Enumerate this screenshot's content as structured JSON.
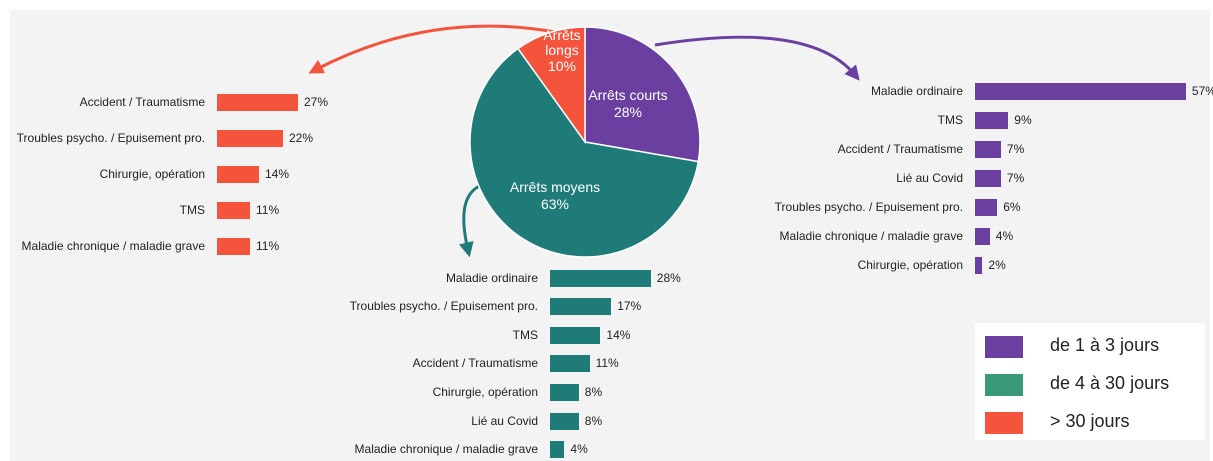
{
  "chart_data": [
    {
      "type": "pie",
      "categories": [
        "Arrêts courts",
        "Arrêts moyens",
        "Arrêts longs"
      ],
      "values": [
        28,
        63,
        10
      ],
      "value_labels": [
        "28%",
        "63%",
        "10%"
      ],
      "colors": [
        "#6b3fa0",
        "#1e7b78",
        "#f4533c"
      ]
    },
    {
      "type": "bar",
      "categories": [
        "Accident / Traumatisme",
        "Troubles psycho. / Epuisement pro.",
        "Chirurgie, opération",
        "TMS",
        "Maladie chronique / maladie grave"
      ],
      "values": [
        27,
        22,
        14,
        11,
        11
      ],
      "value_labels": [
        "27%",
        "22%",
        "14%",
        "11%",
        "11%"
      ],
      "color": "#f4533c"
    },
    {
      "type": "bar",
      "categories": [
        "Maladie ordinaire",
        "Troubles psycho. / Epuisement pro.",
        "TMS",
        "Accident / Traumatisme",
        "Chirurgie, opération",
        "Lié au Covid",
        "Maladie chronique / maladie grave"
      ],
      "values": [
        28,
        17,
        14,
        11,
        8,
        8,
        4
      ],
      "value_labels": [
        "28%",
        "17%",
        "14%",
        "11%",
        "8%",
        "8%",
        "4%"
      ],
      "color": "#1e7b78"
    },
    {
      "type": "bar",
      "categories": [
        "Maladie ordinaire",
        "TMS",
        "Accident / Traumatisme",
        "Lié au Covid",
        "Troubles psycho. / Epuisement pro.",
        "Maladie chronique / maladie grave",
        "Chirurgie, opération"
      ],
      "values": [
        57,
        9,
        7,
        7,
        6,
        4,
        2
      ],
      "value_labels": [
        "57%",
        "9%",
        "7%",
        "7%",
        "6%",
        "4%",
        "2%"
      ],
      "color": "#6b3fa0"
    }
  ],
  "legend": [
    {
      "name": "de 1 à 3 jours",
      "color": "#6b3fa0"
    },
    {
      "name": "de 4 à 30 jours",
      "color": "#3a9a78"
    },
    {
      "name": "> 30 jours",
      "color": "#f4533c"
    }
  ]
}
